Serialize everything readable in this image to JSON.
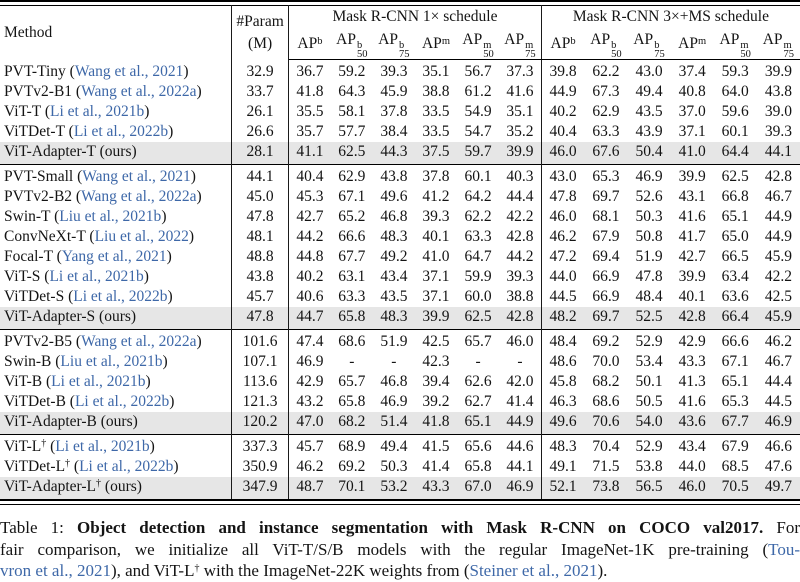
{
  "accent_colors": {
    "citation_blue": "#3e68a8",
    "highlight_gray": "#e6e6e6"
  },
  "table": {
    "header": {
      "method": "Method",
      "param_line1": "#Param",
      "param_line2": "(M)",
      "group1_title": "Mask R-CNN 1× schedule",
      "group2_title": "Mask R-CNN 3×+MS schedule",
      "metrics": [
        {
          "base": "AP",
          "sup": "b",
          "sub": ""
        },
        {
          "base": "AP",
          "sup": "b",
          "sub": "50"
        },
        {
          "base": "AP",
          "sup": "b",
          "sub": "75"
        },
        {
          "base": "AP",
          "sup": "m",
          "sub": ""
        },
        {
          "base": "AP",
          "sup": "m",
          "sub": "50"
        },
        {
          "base": "AP",
          "sup": "m",
          "sub": "75"
        }
      ]
    },
    "groups": [
      {
        "rows": [
          {
            "name": "PVT-Tiny",
            "dagger": "",
            "cite": "Wang et al., 2021",
            "ours": false,
            "param": "32.9",
            "values": [
              "36.7",
              "59.2",
              "39.3",
              "35.1",
              "56.7",
              "37.3",
              "39.8",
              "62.2",
              "43.0",
              "37.4",
              "59.3",
              "39.9"
            ]
          },
          {
            "name": "PVTv2-B1",
            "dagger": "",
            "cite": "Wang et al., 2022a",
            "ours": false,
            "param": "33.7",
            "values": [
              "41.8",
              "64.3",
              "45.9",
              "38.8",
              "61.2",
              "41.6",
              "44.9",
              "67.3",
              "49.4",
              "40.8",
              "64.0",
              "43.8"
            ]
          },
          {
            "name": "ViT-T",
            "dagger": "",
            "cite": "Li et al., 2021b",
            "ours": false,
            "param": "26.1",
            "values": [
              "35.5",
              "58.1",
              "37.8",
              "33.5",
              "54.9",
              "35.1",
              "40.2",
              "62.9",
              "43.5",
              "37.0",
              "59.6",
              "39.0"
            ]
          },
          {
            "name": "ViTDet-T",
            "dagger": "",
            "cite": "Li et al., 2022b",
            "ours": false,
            "param": "26.6",
            "values": [
              "35.7",
              "57.7",
              "38.4",
              "33.5",
              "54.7",
              "35.2",
              "40.4",
              "63.3",
              "43.9",
              "37.1",
              "60.1",
              "39.3"
            ]
          },
          {
            "name": "ViT-Adapter-T",
            "dagger": "",
            "cite": "",
            "ours": true,
            "ours_label": "(ours)",
            "param": "28.1",
            "values": [
              "41.1",
              "62.5",
              "44.3",
              "37.5",
              "59.7",
              "39.9",
              "46.0",
              "67.6",
              "50.4",
              "41.0",
              "64.4",
              "44.1"
            ]
          }
        ]
      },
      {
        "rows": [
          {
            "name": "PVT-Small",
            "dagger": "",
            "cite": "Wang et al., 2021",
            "ours": false,
            "param": "44.1",
            "values": [
              "40.4",
              "62.9",
              "43.8",
              "37.8",
              "60.1",
              "40.3",
              "43.0",
              "65.3",
              "46.9",
              "39.9",
              "62.5",
              "42.8"
            ]
          },
          {
            "name": "PVTv2-B2",
            "dagger": "",
            "cite": "Wang et al., 2022a",
            "ours": false,
            "param": "45.0",
            "values": [
              "45.3",
              "67.1",
              "49.6",
              "41.2",
              "64.2",
              "44.4",
              "47.8",
              "69.7",
              "52.6",
              "43.1",
              "66.8",
              "46.7"
            ]
          },
          {
            "name": "Swin-T",
            "dagger": "",
            "cite": "Liu et al., 2021b",
            "ours": false,
            "param": "47.8",
            "values": [
              "42.7",
              "65.2",
              "46.8",
              "39.3",
              "62.2",
              "42.2",
              "46.0",
              "68.1",
              "50.3",
              "41.6",
              "65.1",
              "44.9"
            ]
          },
          {
            "name": "ConvNeXt-T",
            "dagger": "",
            "cite": "Liu et al., 2022",
            "ours": false,
            "param": "48.1",
            "values": [
              "44.2",
              "66.6",
              "48.3",
              "40.1",
              "63.3",
              "42.8",
              "46.2",
              "67.9",
              "50.8",
              "41.7",
              "65.0",
              "44.9"
            ]
          },
          {
            "name": "Focal-T",
            "dagger": "",
            "cite": "Yang et al., 2021",
            "ours": false,
            "param": "48.8",
            "values": [
              "44.8",
              "67.7",
              "49.2",
              "41.0",
              "64.7",
              "44.2",
              "47.2",
              "69.4",
              "51.9",
              "42.7",
              "66.5",
              "45.9"
            ]
          },
          {
            "name": "ViT-S",
            "dagger": "",
            "cite": "Li et al., 2021b",
            "ours": false,
            "param": "43.8",
            "values": [
              "40.2",
              "63.1",
              "43.4",
              "37.1",
              "59.9",
              "39.3",
              "44.0",
              "66.9",
              "47.8",
              "39.9",
              "63.4",
              "42.2"
            ]
          },
          {
            "name": "ViTDet-S",
            "dagger": "",
            "cite": "Li et al., 2022b",
            "ours": false,
            "param": "45.7",
            "values": [
              "40.6",
              "63.3",
              "43.5",
              "37.1",
              "60.0",
              "38.8",
              "44.5",
              "66.9",
              "48.4",
              "40.1",
              "63.6",
              "42.5"
            ]
          },
          {
            "name": "ViT-Adapter-S",
            "dagger": "",
            "cite": "",
            "ours": true,
            "ours_label": "(ours)",
            "param": "47.8",
            "values": [
              "44.7",
              "65.8",
              "48.3",
              "39.9",
              "62.5",
              "42.8",
              "48.2",
              "69.7",
              "52.5",
              "42.8",
              "66.4",
              "45.9"
            ]
          }
        ]
      },
      {
        "rows": [
          {
            "name": "PVTv2-B5",
            "dagger": "",
            "cite": "Wang et al., 2022a",
            "ours": false,
            "param": "101.6",
            "values": [
              "47.4",
              "68.6",
              "51.9",
              "42.5",
              "65.7",
              "46.0",
              "48.4",
              "69.2",
              "52.9",
              "42.9",
              "66.6",
              "46.2"
            ]
          },
          {
            "name": "Swin-B",
            "dagger": "",
            "cite": "Liu et al., 2021b",
            "ours": false,
            "param": "107.1",
            "values": [
              "46.9",
              "-",
              "-",
              "42.3",
              "-",
              "-",
              "48.6",
              "70.0",
              "53.4",
              "43.3",
              "67.1",
              "46.7"
            ]
          },
          {
            "name": "ViT-B",
            "dagger": "",
            "cite": "Li et al., 2021b",
            "ours": false,
            "param": "113.6",
            "values": [
              "42.9",
              "65.7",
              "46.8",
              "39.4",
              "62.6",
              "42.0",
              "45.8",
              "68.2",
              "50.1",
              "41.3",
              "65.1",
              "44.4"
            ]
          },
          {
            "name": "ViTDet-B",
            "dagger": "",
            "cite": "Li et al., 2022b",
            "ours": false,
            "param": "121.3",
            "values": [
              "43.2",
              "65.8",
              "46.9",
              "39.2",
              "62.7",
              "41.4",
              "46.3",
              "68.6",
              "50.5",
              "41.6",
              "65.3",
              "44.5"
            ]
          },
          {
            "name": "ViT-Adapter-B",
            "dagger": "",
            "cite": "",
            "ours": true,
            "ours_label": "(ours)",
            "param": "120.2",
            "values": [
              "47.0",
              "68.2",
              "51.4",
              "41.8",
              "65.1",
              "44.9",
              "49.6",
              "70.6",
              "54.0",
              "43.6",
              "67.7",
              "46.9"
            ]
          }
        ]
      },
      {
        "rows": [
          {
            "name": "ViT-L",
            "dagger": "†",
            "cite": "Li et al., 2021b",
            "ours": false,
            "param": "337.3",
            "values": [
              "45.7",
              "68.9",
              "49.4",
              "41.5",
              "65.6",
              "44.6",
              "48.3",
              "70.4",
              "52.9",
              "43.4",
              "67.9",
              "46.6"
            ]
          },
          {
            "name": "ViTDet-L",
            "dagger": "†",
            "cite": "Li et al., 2022b",
            "ours": false,
            "param": "350.9",
            "values": [
              "46.2",
              "69.2",
              "50.3",
              "41.4",
              "65.8",
              "44.1",
              "49.1",
              "71.5",
              "53.8",
              "44.0",
              "68.5",
              "47.6"
            ]
          },
          {
            "name": "ViT-Adapter-L",
            "dagger": "†",
            "cite": "",
            "ours": true,
            "ours_label": "(ours)",
            "param": "347.9",
            "values": [
              "48.7",
              "70.1",
              "53.2",
              "43.3",
              "67.0",
              "46.9",
              "52.1",
              "73.8",
              "56.5",
              "46.0",
              "70.5",
              "49.7"
            ]
          }
        ]
      }
    ]
  },
  "caption": {
    "prefix": "Table 1: ",
    "bold": "Object detection and instance segmentation with Mask R-CNN on COCO val2017.",
    "after_bold": " For",
    "line2_text": "fair comparison, we initialize all ViT-T/S/B models with the regular ImageNet-1K pre-training (",
    "line2_cite": "Tou-",
    "line3_cite": "vron et al., 2021",
    "line3_a": "), and ViT-L",
    "dagger": "†",
    "line3_b": " with the ImageNet-22K weights from (",
    "line3_cite2": "Steiner et al., 2021",
    "line3_c": ")."
  }
}
